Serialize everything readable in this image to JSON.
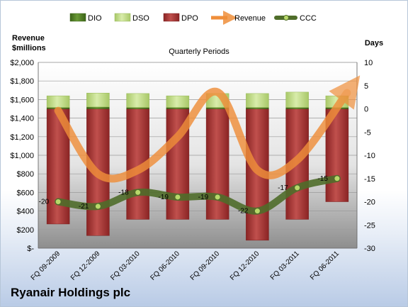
{
  "company": "Ryanair Holdings plc",
  "chart_data": {
    "type": "bar",
    "title": "Quarterly Periods",
    "left_axis_title": [
      "Revenue",
      "$millions"
    ],
    "right_axis_title": "Days",
    "left_ticks": [
      "$2,000",
      "$1,800",
      "$1,600",
      "$1,400",
      "$1,200",
      "$1,000",
      "$800",
      "$600",
      "$400",
      "$200",
      "$-"
    ],
    "right_ticks": [
      "10",
      "5",
      "0",
      "-5",
      "-10",
      "-15",
      "-20",
      "-25",
      "-30"
    ],
    "ylim_left": [
      0,
      2000
    ],
    "ylim_right": [
      -30,
      10
    ],
    "grid": true,
    "legend_position": "top",
    "categories": [
      "FQ 09-2009",
      "FQ 12-2009",
      "FQ 03-2010",
      "FQ 06-2010",
      "FQ 09-2010",
      "FQ 12-2010",
      "FQ 03-2011",
      "FQ 06-2011"
    ],
    "series": [
      {
        "name": "DIO",
        "axis": "right",
        "color": "#4a7a1e",
        "values": [
          0.3,
          0.4,
          0.3,
          0.3,
          0.3,
          0.3,
          0.3,
          0.3
        ]
      },
      {
        "name": "DSO",
        "axis": "right",
        "color": "#c8e088",
        "values": [
          2.5,
          3.0,
          3.0,
          2.5,
          3.0,
          3.0,
          3.3,
          2.5
        ]
      },
      {
        "name": "DPO",
        "axis": "right",
        "color": "#a82020",
        "values": [
          -24.8,
          -27.3,
          -23.8,
          -23.8,
          -23.8,
          -28.3,
          -23.8,
          -20.0
        ]
      },
      {
        "name": "Revenue",
        "axis": "left",
        "color": "#ef8e3a",
        "values": [
          1480,
          800,
          840,
          1200,
          1680,
          840,
          950,
          1580
        ]
      },
      {
        "name": "CCC",
        "axis": "right",
        "color": "#556b2f",
        "values": [
          -20,
          -21,
          -18,
          -19,
          -19,
          -22,
          -17,
          -15
        ]
      }
    ]
  },
  "legend_icons": [
    "dio-swatch-icon",
    "dso-swatch-icon",
    "dpo-swatch-icon",
    "revenue-arrow-icon",
    "ccc-line-marker-icon"
  ]
}
